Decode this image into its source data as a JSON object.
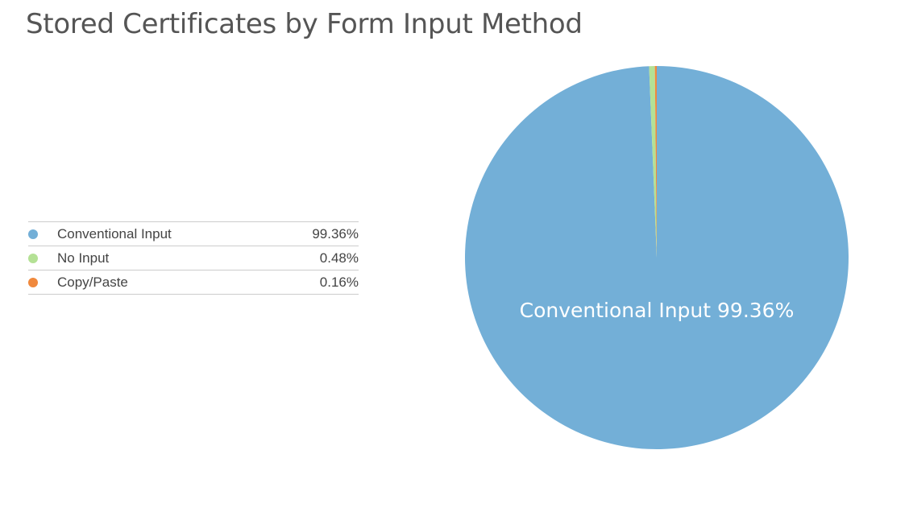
{
  "chart_data": {
    "type": "pie",
    "title": "Stored Certificates by Form Input Method",
    "slices": [
      {
        "label": "Conventional Input",
        "value": 99.36,
        "display": "99.36%",
        "color": "#73afd7"
      },
      {
        "label": "No Input",
        "value": 0.48,
        "display": "0.48%",
        "color": "#b4e195"
      },
      {
        "label": "Copy/Paste",
        "value": 0.16,
        "display": "0.16%",
        "color": "#f0893d"
      }
    ],
    "slice_label": "Conventional Input 99.36%",
    "legend_position": "left"
  }
}
